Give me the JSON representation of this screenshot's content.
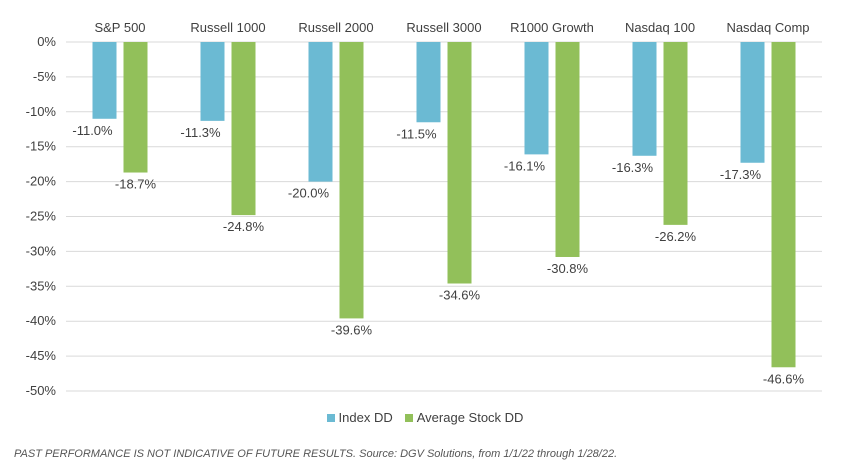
{
  "chart_data": {
    "type": "bar",
    "categories": [
      "S&P 500",
      "Russell 1000",
      "Russell 2000",
      "Russell 3000",
      "R1000 Growth",
      "Nasdaq 100",
      "Nasdaq Comp"
    ],
    "series": [
      {
        "name": "Index DD",
        "values": [
          -11.0,
          -11.3,
          -20.0,
          -11.5,
          -16.1,
          -16.3,
          -17.3
        ],
        "color": "#6bbad3"
      },
      {
        "name": "Average Stock DD",
        "values": [
          -18.7,
          -24.8,
          -39.6,
          -34.6,
          -30.8,
          -26.2,
          -46.6
        ],
        "color": "#92c05a"
      }
    ],
    "data_labels": {
      "Index DD": [
        "-11.0%",
        "-11.3%",
        "-20.0%",
        "-11.5%",
        "-16.1%",
        "-16.3%",
        "-17.3%"
      ],
      "Average Stock DD": [
        "-18.7%",
        "-24.8%",
        "-39.6%",
        "-34.6%",
        "-30.8%",
        "-26.2%",
        "-46.6%"
      ]
    },
    "ylim": [
      -50,
      0
    ],
    "yticks": [
      "0%",
      "-5%",
      "-10%",
      "-15%",
      "-20%",
      "-25%",
      "-30%",
      "-35%",
      "-40%",
      "-45%",
      "-50%"
    ],
    "category_label_position": "top",
    "grid": true,
    "legend_position": "bottom"
  },
  "footnote": "PAST PERFORMANCE IS NOT INDICATIVE OF FUTURE RESULTS. Source: DGV Solutions, from 1/1/22 through 1/28/22."
}
